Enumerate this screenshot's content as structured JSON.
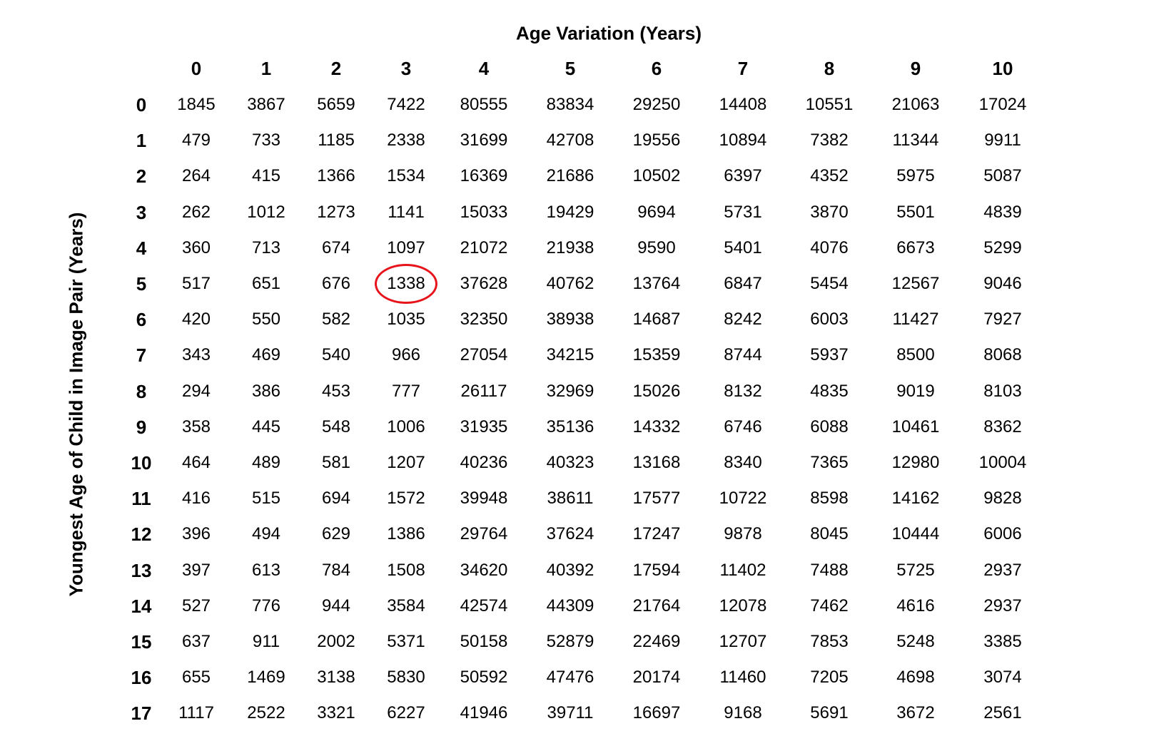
{
  "chart_data": {
    "type": "table",
    "xlabel": "Age Variation (Years)",
    "ylabel": "Youngest Age of Child in Image Pair (Years)",
    "columns": [
      "0",
      "1",
      "2",
      "3",
      "4",
      "5",
      "6",
      "7",
      "8",
      "9",
      "10"
    ],
    "rows": [
      "0",
      "1",
      "2",
      "3",
      "4",
      "5",
      "6",
      "7",
      "8",
      "9",
      "10",
      "11",
      "12",
      "13",
      "14",
      "15",
      "16",
      "17"
    ],
    "values": [
      [
        1845,
        3867,
        5659,
        7422,
        80555,
        83834,
        29250,
        14408,
        10551,
        21063,
        17024
      ],
      [
        479,
        733,
        1185,
        2338,
        31699,
        42708,
        19556,
        10894,
        7382,
        11344,
        9911
      ],
      [
        264,
        415,
        1366,
        1534,
        16369,
        21686,
        10502,
        6397,
        4352,
        5975,
        5087
      ],
      [
        262,
        1012,
        1273,
        1141,
        15033,
        19429,
        9694,
        5731,
        3870,
        5501,
        4839
      ],
      [
        360,
        713,
        674,
        1097,
        21072,
        21938,
        9590,
        5401,
        4076,
        6673,
        5299
      ],
      [
        517,
        651,
        676,
        1338,
        37628,
        40762,
        13764,
        6847,
        5454,
        12567,
        9046
      ],
      [
        420,
        550,
        582,
        1035,
        32350,
        38938,
        14687,
        8242,
        6003,
        11427,
        7927
      ],
      [
        343,
        469,
        540,
        966,
        27054,
        34215,
        15359,
        8744,
        5937,
        8500,
        8068
      ],
      [
        294,
        386,
        453,
        777,
        26117,
        32969,
        15026,
        8132,
        4835,
        9019,
        8103
      ],
      [
        358,
        445,
        548,
        1006,
        31935,
        35136,
        14332,
        6746,
        6088,
        10461,
        8362
      ],
      [
        464,
        489,
        581,
        1207,
        40236,
        40323,
        13168,
        8340,
        7365,
        12980,
        10004
      ],
      [
        416,
        515,
        694,
        1572,
        39948,
        38611,
        17577,
        10722,
        8598,
        14162,
        9828
      ],
      [
        396,
        494,
        629,
        1386,
        29764,
        37624,
        17247,
        9878,
        8045,
        10444,
        6006
      ],
      [
        397,
        613,
        784,
        1508,
        34620,
        40392,
        17594,
        11402,
        7488,
        5725,
        2937
      ],
      [
        527,
        776,
        944,
        3584,
        42574,
        44309,
        21764,
        12078,
        7462,
        4616,
        2937
      ],
      [
        637,
        911,
        2002,
        5371,
        50158,
        52879,
        22469,
        12707,
        7853,
        5248,
        3385
      ],
      [
        655,
        1469,
        3138,
        5830,
        50592,
        47476,
        20174,
        11460,
        7205,
        4698,
        3074
      ],
      [
        1117,
        2522,
        3321,
        6227,
        41946,
        39711,
        16697,
        9168,
        5691,
        3672,
        2561
      ]
    ],
    "highlight": {
      "row": "5",
      "column": "3",
      "value": 1338,
      "color": "#e8141b"
    }
  }
}
